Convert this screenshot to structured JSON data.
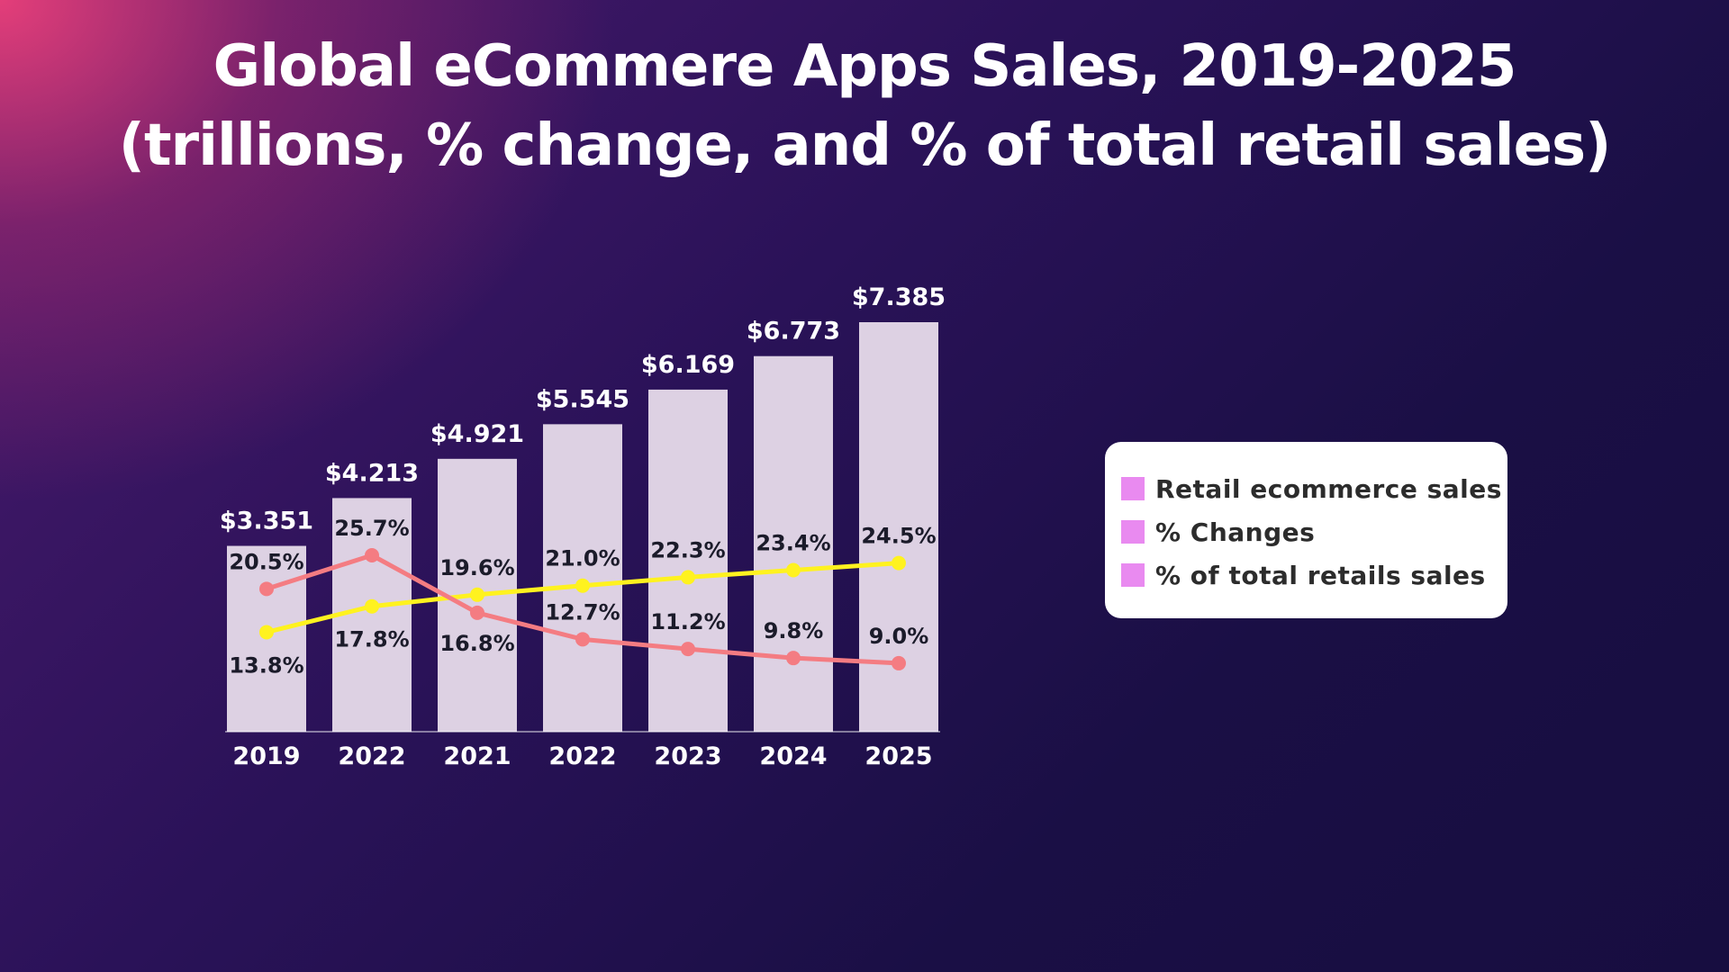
{
  "header": {
    "title_line1": "Global eCommere Apps Sales, 2019-2025",
    "title_line2": "(trillions, % change, and % of total retail sales)"
  },
  "legend": {
    "items": [
      {
        "label": "Retail ecommerce sales",
        "color": "#e98af0"
      },
      {
        "label": "% Changes",
        "color": "#e98af0"
      },
      {
        "label": "% of total retails sales",
        "color": "#e98af0"
      }
    ]
  },
  "chart_data": {
    "type": "bar",
    "title": "Global eCommere Apps Sales, 2019-2025",
    "subtitle": "(trillions, % change, and % of total retail sales)",
    "categories": [
      "2019",
      "2022",
      "2021",
      "2022",
      "2023",
      "2024",
      "2025"
    ],
    "series": [
      {
        "name": "Retail ecommerce sales",
        "kind": "bar",
        "values": [
          3.351,
          4.213,
          4.921,
          5.545,
          6.169,
          6.773,
          7.385
        ],
        "labels": [
          "$3.351",
          "$4.213",
          "$4.921",
          "$5.545",
          "$6.169",
          "$6.773",
          "$7.385"
        ],
        "color": "#ddd1e3"
      },
      {
        "name": "% Changes",
        "kind": "line",
        "values": [
          20.5,
          25.7,
          16.8,
          12.7,
          11.2,
          9.8,
          9.0
        ],
        "labels": [
          "20.5%",
          "25.7%",
          "16.8%",
          "12.7%",
          "11.2%",
          "9.8%",
          "9.0%"
        ],
        "color": "#f47c82"
      },
      {
        "name": "% of total retails sales",
        "kind": "line",
        "values": [
          13.8,
          17.8,
          19.6,
          21.0,
          22.3,
          23.4,
          24.5
        ],
        "labels": [
          "13.8%",
          "17.8%",
          "19.6%",
          "21.0%",
          "22.3%",
          "23.4%",
          "24.5%"
        ],
        "color": "#fff21f"
      }
    ],
    "xlabel": "",
    "ylabel": "",
    "grid": false,
    "legend_position": "right"
  }
}
